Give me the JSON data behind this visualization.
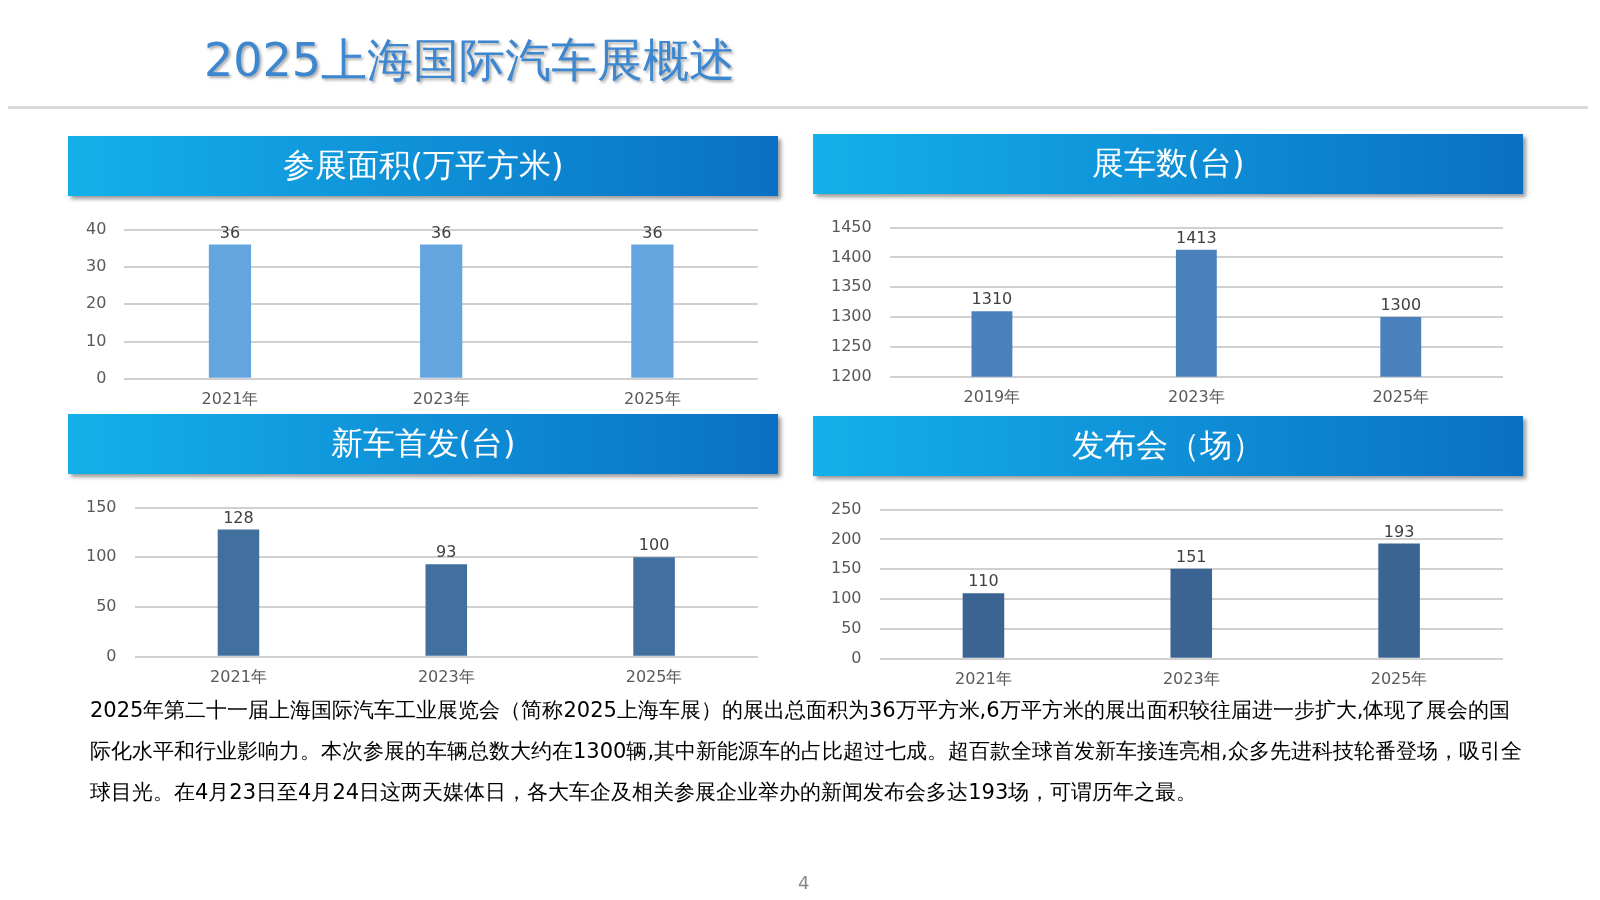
{
  "chart_data": [
    {
      "type": "other",
      "title": "2025上海国际汽车展概述",
      "annotations": [
        "2025年第二十一届上海国际汽车工业展览会（简称2025上海车展）的展出总面积为36万平方米,6万平方米的展出面积较往届进一步扩大,体现了展会的国际化水平和行业影响力。本次参展的车辆总数大约在1300辆,其中新能源车的占比超过七成。超百款全球首发新车接连亮相,众多先进科技轮番登场，吸引全球目光。在4月23日至4月24日这两天媒体日，各大车企及相关参展企业举办的新闻发布会多达193场，可谓历年之最。",
        "4"
      ]
    },
    {
      "type": "bar",
      "title": "参展面积(万平方米)",
      "categories": [
        "2021年",
        "2023年",
        "2025年"
      ],
      "values": [
        36,
        36,
        36
      ],
      "color": "#64a5e0",
      "ylim": [
        0,
        40
      ],
      "yticks": [
        0,
        10,
        20,
        30,
        40
      ],
      "grid": "y",
      "data_labels": true
    },
    {
      "type": "bar",
      "title": "展车数(台)",
      "categories": [
        "2019年",
        "2023年",
        "2025年"
      ],
      "values": [
        1310,
        1413,
        1300
      ],
      "color": "#4b82bd",
      "ylim": [
        1200,
        1450
      ],
      "yticks": [
        1200,
        1250,
        1300,
        1350,
        1400,
        1450
      ],
      "grid": "y",
      "data_labels": true
    },
    {
      "type": "bar",
      "title": "新车首发(台)",
      "categories": [
        "2021年",
        "2023年",
        "2025年"
      ],
      "values": [
        128,
        93,
        100
      ],
      "color": "#41709f",
      "ylim": [
        0,
        150
      ],
      "yticks": [
        0,
        50,
        100,
        150
      ],
      "grid": "y",
      "data_labels": true
    },
    {
      "type": "bar",
      "title": "发布会（场）",
      "categories": [
        "2021年",
        "2023年",
        "2025年"
      ],
      "values": [
        110,
        151,
        193
      ],
      "color": "#3b6492",
      "ylim": [
        0,
        250
      ],
      "yticks": [
        0,
        50,
        100,
        150,
        200,
        250
      ],
      "grid": "y",
      "data_labels": true
    }
  ]
}
